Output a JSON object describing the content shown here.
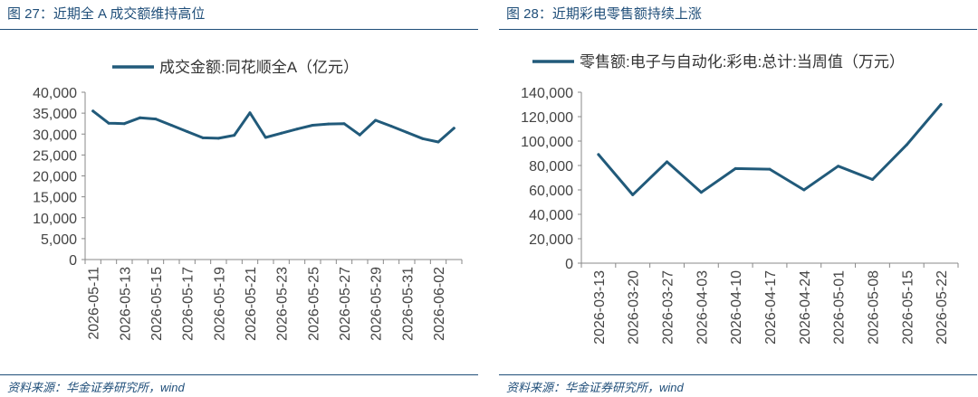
{
  "charts": [
    {
      "figure_title": "图 27：近期全 A 成交额维持高位",
      "source": "资料来源：华金证券研究所，wind",
      "color": "#215a7a",
      "chart_data": {
        "type": "line",
        "title": "",
        "xlabel": "",
        "ylabel": "",
        "legend": "top",
        "grid": false,
        "ylim": [
          0,
          40000
        ],
        "yticks": [
          "0",
          "5,000",
          "10,000",
          "15,000",
          "20,000",
          "25,000",
          "30,000",
          "35,000",
          "40,000"
        ],
        "categories": [
          "2026-05-11",
          "2026-05-12",
          "2026-05-13",
          "2026-05-14",
          "2026-05-15",
          "2026-05-16",
          "2026-05-17",
          "2026-05-18",
          "2026-05-19",
          "2026-05-20",
          "2026-05-21",
          "2026-05-22",
          "2026-05-23",
          "2026-05-24",
          "2026-05-25",
          "2026-05-26",
          "2026-05-27",
          "2026-05-28",
          "2026-05-29",
          "2026-05-30",
          "2026-05-31",
          "2026-06-01",
          "2026-06-02",
          "2026-06-03"
        ],
        "xtick_labels": [
          "2026-05-11",
          "2026-05-13",
          "2026-05-15",
          "2026-05-17",
          "2026-05-19",
          "2026-05-21",
          "2026-05-23",
          "2026-05-25",
          "2026-05-27",
          "2026-05-29",
          "2026-05-31",
          "2026-06-02"
        ],
        "series": [
          {
            "name": "成交金额:同花顺全A（亿元）",
            "values": [
              35500,
              32600,
              32500,
              33900,
              33600,
              32100,
              30600,
              29100,
              29000,
              29700,
              35100,
              29200,
              30200,
              31200,
              32100,
              32400,
              32500,
              29800,
              33300,
              31900,
              30400,
              28900,
              28100,
              31400
            ]
          }
        ]
      }
    },
    {
      "figure_title": "图 28：近期彩电零售额持续上涨",
      "source": "资料来源：华金证券研究所，wind",
      "color": "#215a7a",
      "chart_data": {
        "type": "line",
        "title": "",
        "xlabel": "",
        "ylabel": "",
        "legend": "top",
        "grid": false,
        "ylim": [
          0,
          140000
        ],
        "yticks": [
          "0",
          "20,000",
          "40,000",
          "60,000",
          "80,000",
          "100,000",
          "120,000",
          "140,000"
        ],
        "categories": [
          "2026-03-13",
          "2026-03-20",
          "2026-03-27",
          "2026-04-03",
          "2026-04-10",
          "2026-04-17",
          "2026-04-24",
          "2026-05-01",
          "2026-05-08",
          "2026-05-15",
          "2026-05-22"
        ],
        "xtick_labels": [
          "2026-03-13",
          "2026-03-20",
          "2026-03-27",
          "2026-04-03",
          "2026-04-10",
          "2026-04-17",
          "2026-04-24",
          "2026-05-01",
          "2026-05-08",
          "2026-05-15",
          "2026-05-22"
        ],
        "series": [
          {
            "name": "零售额:电子与自动化:彩电:总计:当周值（万元）",
            "values": [
              89000,
              56000,
              83000,
              58000,
              77500,
              77000,
              60000,
              79500,
              68500,
              97000,
              130000
            ]
          }
        ]
      }
    }
  ]
}
